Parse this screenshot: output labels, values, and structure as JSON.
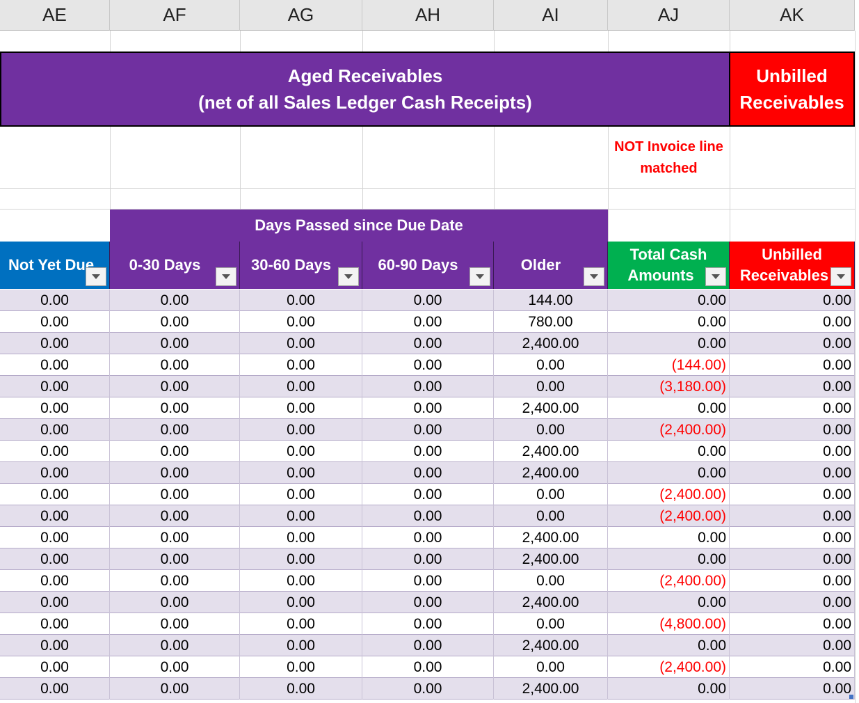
{
  "columns": [
    "AE",
    "AF",
    "AG",
    "AH",
    "AI",
    "AJ",
    "AK"
  ],
  "aged_title_line1": "Aged Receivables",
  "aged_title_line2": "(net of all Sales Ledger Cash Receipts)",
  "unbilled_title_line1": "Unbilled",
  "unbilled_title_line2": "Receivables",
  "note_line1": "NOT Invoice line",
  "note_line2": "matched",
  "days_band": "Days Passed since Due Date",
  "headers": {
    "not_yet_due": "Not Yet Due",
    "d0_30": "0-30 Days",
    "d30_60": "30-60 Days",
    "d60_90": "60-90 Days",
    "older": "Older",
    "total_cash_line1": "Total Cash",
    "total_cash_line2": "Amounts",
    "unbilled_line1": "Unbilled",
    "unbilled_line2": "Receivables"
  },
  "colors": {
    "purple": "#7030a0",
    "blue": "#0070c0",
    "green": "#00b050",
    "red": "#ff0000",
    "row_shade": "#e4dfec"
  },
  "icons": [
    "filter-dropdown-icon"
  ],
  "rows": [
    [
      "0.00",
      "0.00",
      "0.00",
      "0.00",
      "144.00",
      "0.00",
      "0.00"
    ],
    [
      "0.00",
      "0.00",
      "0.00",
      "0.00",
      "780.00",
      "0.00",
      "0.00"
    ],
    [
      "0.00",
      "0.00",
      "0.00",
      "0.00",
      "2,400.00",
      "0.00",
      "0.00"
    ],
    [
      "0.00",
      "0.00",
      "0.00",
      "0.00",
      "0.00",
      "(144.00)",
      "0.00"
    ],
    [
      "0.00",
      "0.00",
      "0.00",
      "0.00",
      "0.00",
      "(3,180.00)",
      "0.00"
    ],
    [
      "0.00",
      "0.00",
      "0.00",
      "0.00",
      "2,400.00",
      "0.00",
      "0.00"
    ],
    [
      "0.00",
      "0.00",
      "0.00",
      "0.00",
      "0.00",
      "(2,400.00)",
      "0.00"
    ],
    [
      "0.00",
      "0.00",
      "0.00",
      "0.00",
      "2,400.00",
      "0.00",
      "0.00"
    ],
    [
      "0.00",
      "0.00",
      "0.00",
      "0.00",
      "2,400.00",
      "0.00",
      "0.00"
    ],
    [
      "0.00",
      "0.00",
      "0.00",
      "0.00",
      "0.00",
      "(2,400.00)",
      "0.00"
    ],
    [
      "0.00",
      "0.00",
      "0.00",
      "0.00",
      "0.00",
      "(2,400.00)",
      "0.00"
    ],
    [
      "0.00",
      "0.00",
      "0.00",
      "0.00",
      "2,400.00",
      "0.00",
      "0.00"
    ],
    [
      "0.00",
      "0.00",
      "0.00",
      "0.00",
      "2,400.00",
      "0.00",
      "0.00"
    ],
    [
      "0.00",
      "0.00",
      "0.00",
      "0.00",
      "0.00",
      "(2,400.00)",
      "0.00"
    ],
    [
      "0.00",
      "0.00",
      "0.00",
      "0.00",
      "2,400.00",
      "0.00",
      "0.00"
    ],
    [
      "0.00",
      "0.00",
      "0.00",
      "0.00",
      "0.00",
      "(4,800.00)",
      "0.00"
    ],
    [
      "0.00",
      "0.00",
      "0.00",
      "0.00",
      "2,400.00",
      "0.00",
      "0.00"
    ],
    [
      "0.00",
      "0.00",
      "0.00",
      "0.00",
      "0.00",
      "(2,400.00)",
      "0.00"
    ],
    [
      "0.00",
      "0.00",
      "0.00",
      "0.00",
      "2,400.00",
      "0.00",
      "0.00"
    ]
  ]
}
